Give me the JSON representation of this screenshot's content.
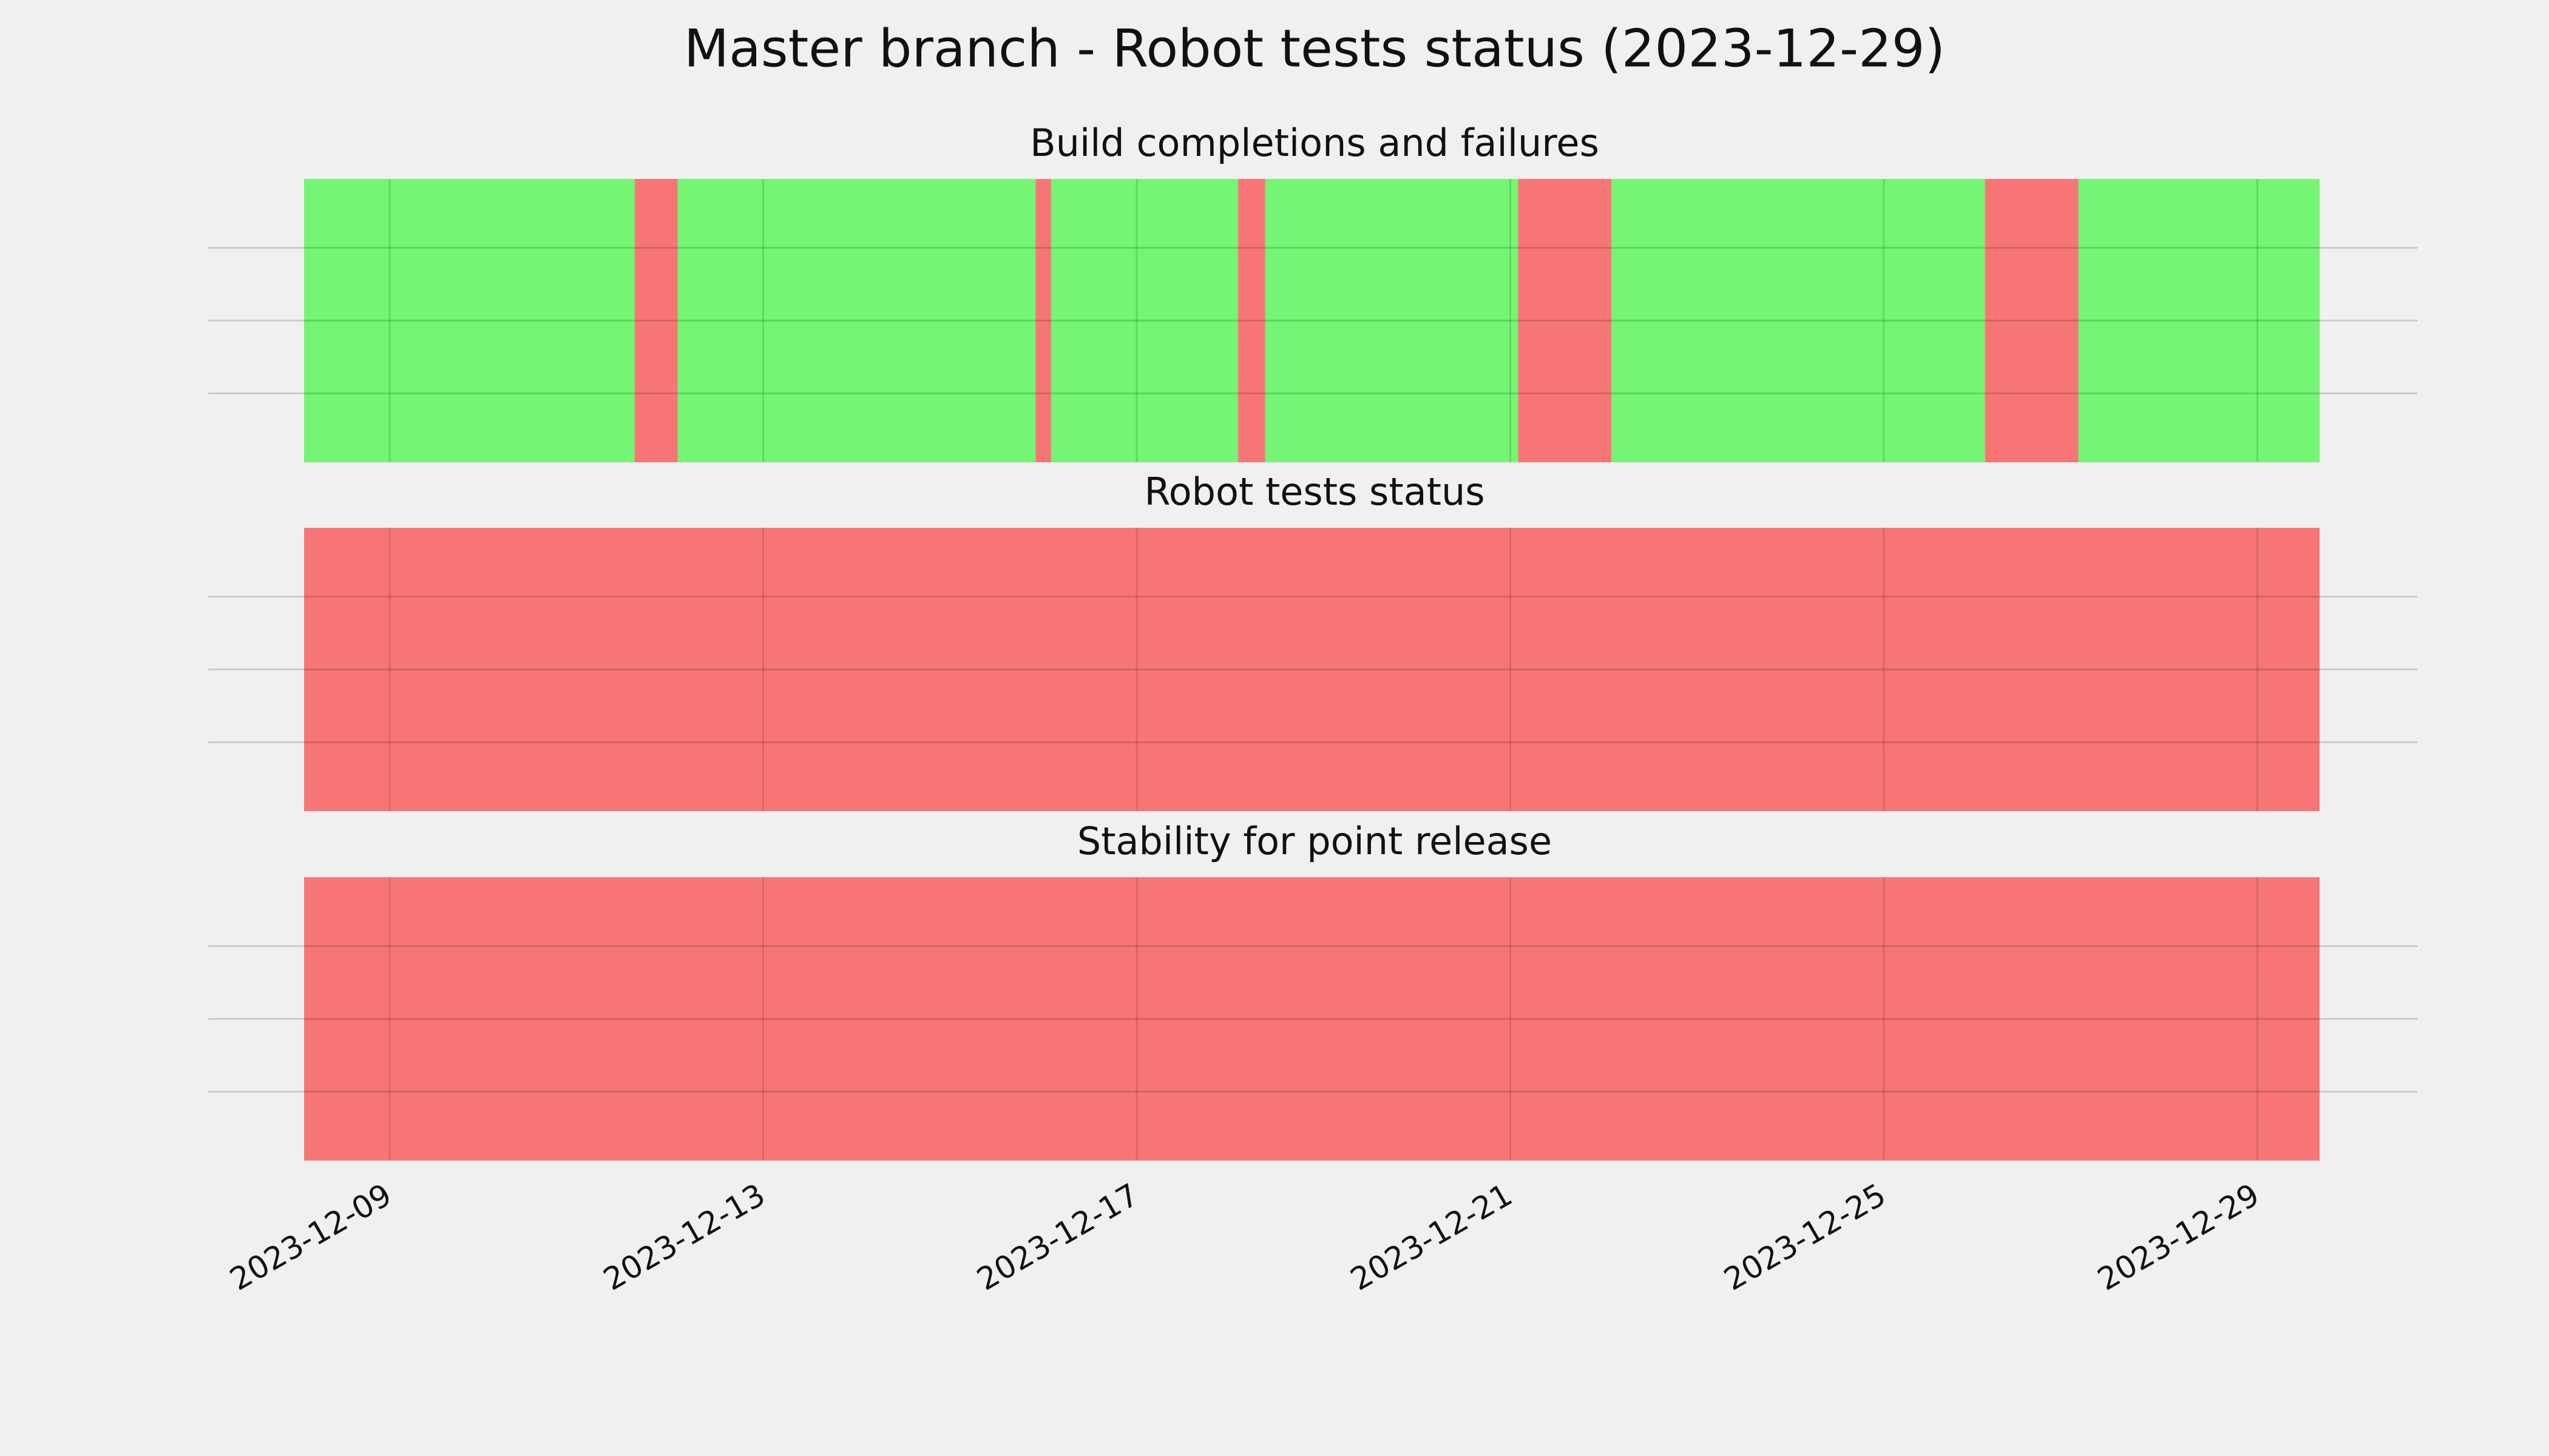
{
  "title": "Master branch - Robot tests status (2023-12-29)",
  "chart_data": [
    {
      "type": "timeline",
      "title": "Build completions and failures",
      "xlim": [
        "2023-12-08T02:00",
        "2023-12-29T16:00"
      ],
      "xticks": [
        "2023-12-09",
        "2023-12-13",
        "2023-12-17",
        "2023-12-21",
        "2023-12-25",
        "2023-12-29"
      ],
      "grid": true,
      "series": [
        {
          "color": "#74f574",
          "spans": [
            [
              "2023-12-08T02:00",
              "2023-12-11T15:00"
            ],
            [
              "2023-12-12T02:00",
              "2023-12-15T22:00"
            ],
            [
              "2023-12-16T02:00",
              "2023-12-18T02:00"
            ],
            [
              "2023-12-18T09:00",
              "2023-12-21T02:00"
            ],
            [
              "2023-12-22T02:00",
              "2023-12-26T02:00"
            ],
            [
              "2023-12-27T02:00",
              "2023-12-29T16:00"
            ]
          ]
        },
        {
          "color": "#f77675",
          "spans": [
            [
              "2023-12-11T15:00",
              "2023-12-12T02:00"
            ],
            [
              "2023-12-15T22:00",
              "2023-12-16T02:00"
            ],
            [
              "2023-12-18T02:00",
              "2023-12-18T09:00"
            ],
            [
              "2023-12-21T02:00",
              "2023-12-22T02:00"
            ],
            [
              "2023-12-26T02:00",
              "2023-12-27T02:00"
            ]
          ]
        }
      ]
    },
    {
      "type": "timeline",
      "title": "Robot tests status",
      "xlim": [
        "2023-12-08T02:00",
        "2023-12-29T16:00"
      ],
      "xticks": [
        "2023-12-09",
        "2023-12-13",
        "2023-12-17",
        "2023-12-21",
        "2023-12-25",
        "2023-12-29"
      ],
      "grid": true,
      "series": [
        {
          "color": "#f77675",
          "spans": [
            [
              "2023-12-08T02:00",
              "2023-12-29T16:00"
            ]
          ]
        }
      ]
    },
    {
      "type": "timeline",
      "title": "Stability for point release",
      "xlim": [
        "2023-12-08T02:00",
        "2023-12-29T16:00"
      ],
      "xticks": [
        "2023-12-09",
        "2023-12-13",
        "2023-12-17",
        "2023-12-21",
        "2023-12-25",
        "2023-12-29"
      ],
      "grid": true,
      "series": [
        {
          "color": "#f77675",
          "spans": [
            [
              "2023-12-08T02:00",
              "2023-12-29T16:00"
            ]
          ]
        }
      ]
    }
  ]
}
